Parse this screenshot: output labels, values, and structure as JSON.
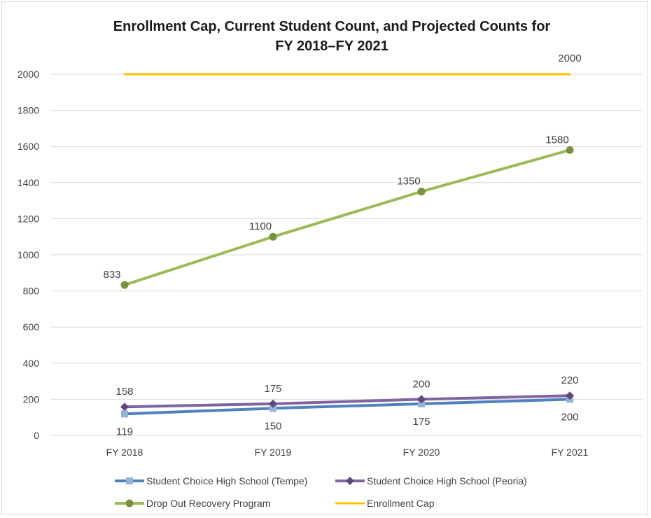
{
  "chart_data": {
    "type": "line",
    "title_lines": [
      "Enrollment Cap, Current Student Count, and Projected Counts for",
      "FY 2018–FY 2021"
    ],
    "categories": [
      "FY 2018",
      "FY 2019",
      "FY 2020",
      "FY 2021"
    ],
    "ylim": [
      0,
      2000
    ],
    "yticks": [
      0,
      200,
      400,
      600,
      800,
      1000,
      1200,
      1400,
      1600,
      1800,
      2000
    ],
    "grid": true,
    "legend_position": "bottom",
    "series": [
      {
        "name": "Student Choice High School (Tempe)",
        "values": [
          119,
          150,
          175,
          200
        ],
        "color": "#4f81bd",
        "marker_color": "#95b3d7",
        "marker": "square",
        "label_position": "below"
      },
      {
        "name": "Student Choice High School (Peoria)",
        "values": [
          158,
          175,
          200,
          220
        ],
        "color": "#8064a2",
        "marker_color": "#60497a",
        "marker": "diamond",
        "label_position": "above"
      },
      {
        "name": "Drop Out Recovery Program",
        "values": [
          833,
          1100,
          1350,
          1580
        ],
        "color": "#9bbb59",
        "marker_color": "#76923c",
        "marker": "circle",
        "label_position": "above"
      },
      {
        "name": "Enrollment Cap",
        "values": [
          2000,
          2000,
          2000,
          2000
        ],
        "color": "#ffc000",
        "marker": "none",
        "label_position": "last-only",
        "data_label": "2000"
      }
    ]
  }
}
